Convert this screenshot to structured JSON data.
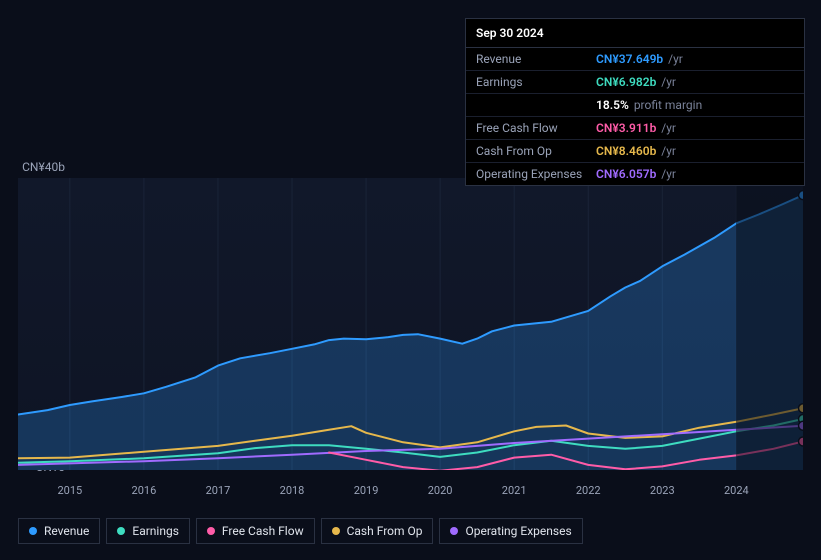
{
  "chart": {
    "type": "line",
    "background_color": "#0a0e1a",
    "plot_background": "#11182a",
    "grid_color": "#1a2438",
    "axis_text_color": "#9aa3b8",
    "axis_fontsize": 11,
    "y_top_label": "CN¥40b",
    "y_bottom_label": "CN¥0",
    "y_min": 0,
    "y_max": 40,
    "x_labels": [
      "2015",
      "2016",
      "2017",
      "2018",
      "2019",
      "2020",
      "2021",
      "2022",
      "2023",
      "2024"
    ],
    "x_min": 2014.3,
    "x_max": 2024.9,
    "dim_from_x": 2024.0,
    "marker_x": 2024.9,
    "series": [
      {
        "key": "revenue",
        "label": "Revenue",
        "color": "#2e9bff",
        "fill_opacity": 0.25,
        "line_width": 2,
        "data": [
          [
            2014.3,
            7.6
          ],
          [
            2014.7,
            8.2
          ],
          [
            2015.0,
            8.9
          ],
          [
            2015.3,
            9.4
          ],
          [
            2015.7,
            10.0
          ],
          [
            2016.0,
            10.5
          ],
          [
            2016.3,
            11.4
          ],
          [
            2016.7,
            12.7
          ],
          [
            2017.0,
            14.3
          ],
          [
            2017.3,
            15.3
          ],
          [
            2017.7,
            16.0
          ],
          [
            2018.0,
            16.6
          ],
          [
            2018.3,
            17.2
          ],
          [
            2018.5,
            17.8
          ],
          [
            2018.7,
            18.0
          ],
          [
            2019.0,
            17.9
          ],
          [
            2019.3,
            18.2
          ],
          [
            2019.5,
            18.5
          ],
          [
            2019.7,
            18.6
          ],
          [
            2020.0,
            18.0
          ],
          [
            2020.3,
            17.3
          ],
          [
            2020.5,
            18.0
          ],
          [
            2020.7,
            19.0
          ],
          [
            2021.0,
            19.8
          ],
          [
            2021.3,
            20.1
          ],
          [
            2021.5,
            20.3
          ],
          [
            2021.7,
            20.9
          ],
          [
            2022.0,
            21.8
          ],
          [
            2022.3,
            23.8
          ],
          [
            2022.5,
            25.0
          ],
          [
            2022.7,
            25.9
          ],
          [
            2023.0,
            27.9
          ],
          [
            2023.3,
            29.5
          ],
          [
            2023.7,
            31.8
          ],
          [
            2024.0,
            33.8
          ],
          [
            2024.3,
            35.0
          ],
          [
            2024.6,
            36.3
          ],
          [
            2024.9,
            37.65
          ]
        ]
      },
      {
        "key": "cash_from_op",
        "label": "Cash From Op",
        "color": "#e6b84c",
        "fill_opacity": 0,
        "line_width": 2,
        "data": [
          [
            2014.3,
            1.6
          ],
          [
            2015.0,
            1.7
          ],
          [
            2016.0,
            2.5
          ],
          [
            2017.0,
            3.3
          ],
          [
            2017.5,
            4.0
          ],
          [
            2018.0,
            4.7
          ],
          [
            2018.5,
            5.5
          ],
          [
            2018.8,
            6.0
          ],
          [
            2019.0,
            5.1
          ],
          [
            2019.5,
            3.8
          ],
          [
            2020.0,
            3.1
          ],
          [
            2020.5,
            3.8
          ],
          [
            2021.0,
            5.3
          ],
          [
            2021.3,
            5.9
          ],
          [
            2021.7,
            6.1
          ],
          [
            2022.0,
            5.0
          ],
          [
            2022.5,
            4.4
          ],
          [
            2023.0,
            4.6
          ],
          [
            2023.5,
            5.8
          ],
          [
            2024.0,
            6.6
          ],
          [
            2024.5,
            7.6
          ],
          [
            2024.9,
            8.46
          ]
        ]
      },
      {
        "key": "earnings",
        "label": "Earnings",
        "color": "#3edcc0",
        "fill_opacity": 0,
        "line_width": 2,
        "data": [
          [
            2014.3,
            1.0
          ],
          [
            2015.0,
            1.2
          ],
          [
            2016.0,
            1.6
          ],
          [
            2017.0,
            2.3
          ],
          [
            2017.5,
            3.0
          ],
          [
            2018.0,
            3.4
          ],
          [
            2018.5,
            3.4
          ],
          [
            2019.0,
            2.9
          ],
          [
            2019.5,
            2.4
          ],
          [
            2020.0,
            1.8
          ],
          [
            2020.5,
            2.4
          ],
          [
            2021.0,
            3.4
          ],
          [
            2021.5,
            4.0
          ],
          [
            2022.0,
            3.3
          ],
          [
            2022.5,
            2.9
          ],
          [
            2023.0,
            3.3
          ],
          [
            2023.5,
            4.3
          ],
          [
            2024.0,
            5.3
          ],
          [
            2024.5,
            6.1
          ],
          [
            2024.9,
            6.98
          ]
        ]
      },
      {
        "key": "op_exp",
        "label": "Operating Expenses",
        "color": "#a06bff",
        "fill_opacity": 0,
        "line_width": 2,
        "data": [
          [
            2014.3,
            0.7
          ],
          [
            2015.0,
            0.9
          ],
          [
            2016.0,
            1.2
          ],
          [
            2017.0,
            1.6
          ],
          [
            2018.0,
            2.1
          ],
          [
            2019.0,
            2.6
          ],
          [
            2020.0,
            2.9
          ],
          [
            2021.0,
            3.7
          ],
          [
            2022.0,
            4.3
          ],
          [
            2023.0,
            4.9
          ],
          [
            2024.0,
            5.5
          ],
          [
            2024.9,
            6.06
          ]
        ]
      },
      {
        "key": "fcf",
        "label": "Free Cash Flow",
        "color": "#ff5ca8",
        "fill_opacity": 0,
        "line_width": 2,
        "start_x": 2018.5,
        "data": [
          [
            2018.5,
            2.4
          ],
          [
            2019.0,
            1.4
          ],
          [
            2019.5,
            0.4
          ],
          [
            2020.0,
            -0.1
          ],
          [
            2020.5,
            0.4
          ],
          [
            2021.0,
            1.7
          ],
          [
            2021.5,
            2.1
          ],
          [
            2022.0,
            0.7
          ],
          [
            2022.5,
            0.1
          ],
          [
            2023.0,
            0.5
          ],
          [
            2023.5,
            1.4
          ],
          [
            2024.0,
            2.0
          ],
          [
            2024.5,
            2.9
          ],
          [
            2024.9,
            3.91
          ]
        ]
      }
    ]
  },
  "tooltip": {
    "date": "Sep 30 2024",
    "rows": [
      {
        "label": "Revenue",
        "value": "CN¥37.649b",
        "suffix": "/yr",
        "color": "#2e9bff"
      },
      {
        "label": "Earnings",
        "value": "CN¥6.982b",
        "suffix": "/yr",
        "color": "#3edcc0"
      },
      {
        "label": "",
        "value": "18.5%",
        "suffix": "profit margin",
        "color": "#ffffff"
      },
      {
        "label": "Free Cash Flow",
        "value": "CN¥3.911b",
        "suffix": "/yr",
        "color": "#ff5ca8"
      },
      {
        "label": "Cash From Op",
        "value": "CN¥8.460b",
        "suffix": "/yr",
        "color": "#e6b84c"
      },
      {
        "label": "Operating Expenses",
        "value": "CN¥6.057b",
        "suffix": "/yr",
        "color": "#a06bff"
      }
    ]
  },
  "legend": [
    {
      "label": "Revenue",
      "color": "#2e9bff"
    },
    {
      "label": "Earnings",
      "color": "#3edcc0"
    },
    {
      "label": "Free Cash Flow",
      "color": "#ff5ca8"
    },
    {
      "label": "Cash From Op",
      "color": "#e6b84c"
    },
    {
      "label": "Operating Expenses",
      "color": "#a06bff"
    }
  ]
}
